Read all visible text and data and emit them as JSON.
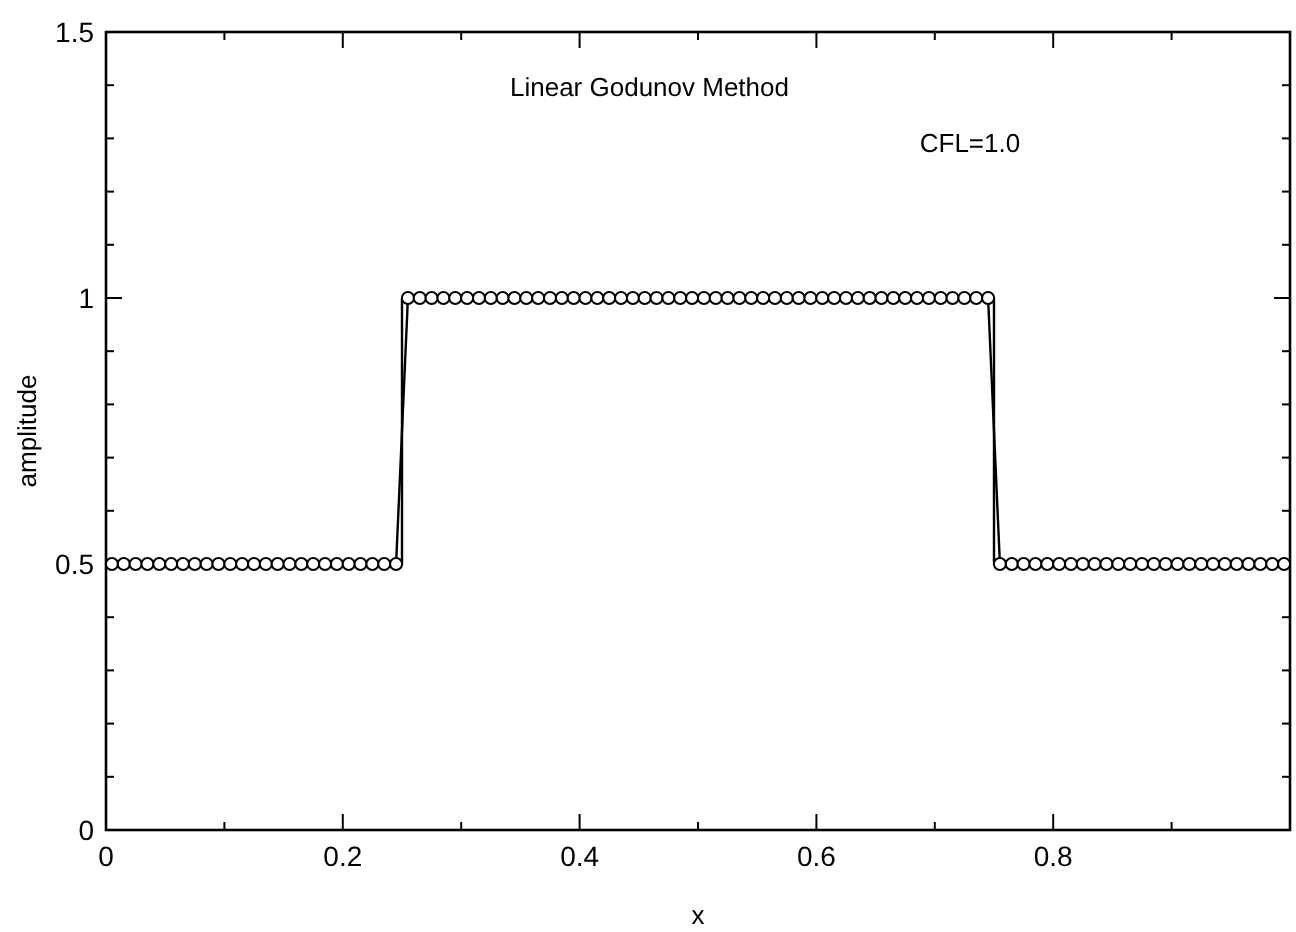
{
  "chart_data": {
    "type": "line",
    "xlabel": "x",
    "ylabel": "amplitude",
    "annotations": [
      "Linear Godunov Method",
      "CFL=1.0"
    ],
    "xlim": [
      0,
      1
    ],
    "ylim": [
      0,
      1.5
    ],
    "xticks": [
      0,
      {
        "value": 0.1,
        "label": null
      },
      0.2,
      {
        "value": 0.3,
        "label": null
      },
      0.4,
      {
        "value": 0.5,
        "label": null
      },
      0.6,
      {
        "value": 0.7,
        "label": null
      },
      0.8,
      {
        "value": 0.9,
        "label": null
      }
    ],
    "yticks": [
      0,
      {
        "value": 0.1,
        "label": null
      },
      {
        "value": 0.2,
        "label": null
      },
      {
        "value": 0.3,
        "label": null
      },
      {
        "value": 0.4,
        "label": null
      },
      0.5,
      {
        "value": 0.6,
        "label": null
      },
      {
        "value": 0.7,
        "label": null
      },
      {
        "value": 0.8,
        "label": null
      },
      {
        "value": 0.9,
        "label": null
      },
      1,
      {
        "value": 1.1,
        "label": null
      },
      {
        "value": 1.2,
        "label": null
      },
      {
        "value": 1.3,
        "label": null
      },
      {
        "value": 1.4,
        "label": null
      },
      1.5
    ],
    "series": [
      {
        "color": "#000000",
        "marker": "none",
        "x": [
          0,
          0.25,
          0.25,
          0.75,
          0.75,
          1
        ],
        "values": [
          0.5,
          0.5,
          1,
          1,
          0.5,
          0.5
        ]
      },
      {
        "color": "#000000",
        "marker": "circle",
        "x": [
          0.005,
          0.015,
          0.025,
          0.035,
          0.045,
          0.055,
          0.065,
          0.075,
          0.085,
          0.095,
          0.105,
          0.115,
          0.125,
          0.135,
          0.145,
          0.155,
          0.165,
          0.175,
          0.185,
          0.195,
          0.205,
          0.215,
          0.225,
          0.235,
          0.245,
          0.255,
          0.265,
          0.275,
          0.285,
          0.295,
          0.305,
          0.315,
          0.325,
          0.335,
          0.345,
          0.355,
          0.365,
          0.375,
          0.385,
          0.395,
          0.405,
          0.415,
          0.425,
          0.435,
          0.445,
          0.455,
          0.465,
          0.475,
          0.485,
          0.495,
          0.505,
          0.515,
          0.525,
          0.535,
          0.545,
          0.555,
          0.565,
          0.575,
          0.585,
          0.595,
          0.605,
          0.615,
          0.625,
          0.635,
          0.645,
          0.655,
          0.665,
          0.675,
          0.685,
          0.695,
          0.705,
          0.715,
          0.725,
          0.735,
          0.745,
          0.755,
          0.765,
          0.775,
          0.785,
          0.795,
          0.805,
          0.815,
          0.825,
          0.835,
          0.845,
          0.855,
          0.865,
          0.875,
          0.885,
          0.895,
          0.905,
          0.915,
          0.925,
          0.935,
          0.945,
          0.955,
          0.965,
          0.975,
          0.985,
          0.995
        ],
        "values": [
          0.5,
          0.5,
          0.5,
          0.5,
          0.5,
          0.5,
          0.5,
          0.5,
          0.5,
          0.5,
          0.5,
          0.5,
          0.5,
          0.5,
          0.5,
          0.5,
          0.5,
          0.5,
          0.5,
          0.5,
          0.5,
          0.5,
          0.5,
          0.5,
          0.5,
          1,
          1,
          1,
          1,
          1,
          1,
          1,
          1,
          1,
          1,
          1,
          1,
          1,
          1,
          1,
          1,
          1,
          1,
          1,
          1,
          1,
          1,
          1,
          1,
          1,
          1,
          1,
          1,
          1,
          1,
          1,
          1,
          1,
          1,
          1,
          1,
          1,
          1,
          1,
          1,
          1,
          1,
          1,
          1,
          1,
          1,
          1,
          1,
          1,
          1,
          0.5,
          0.5,
          0.5,
          0.5,
          0.5,
          0.5,
          0.5,
          0.5,
          0.5,
          0.5,
          0.5,
          0.5,
          0.5,
          0.5,
          0.5,
          0.5,
          0.5,
          0.5,
          0.5,
          0.5,
          0.5,
          0.5,
          0.5,
          0.5,
          0.5
        ]
      }
    ]
  }
}
